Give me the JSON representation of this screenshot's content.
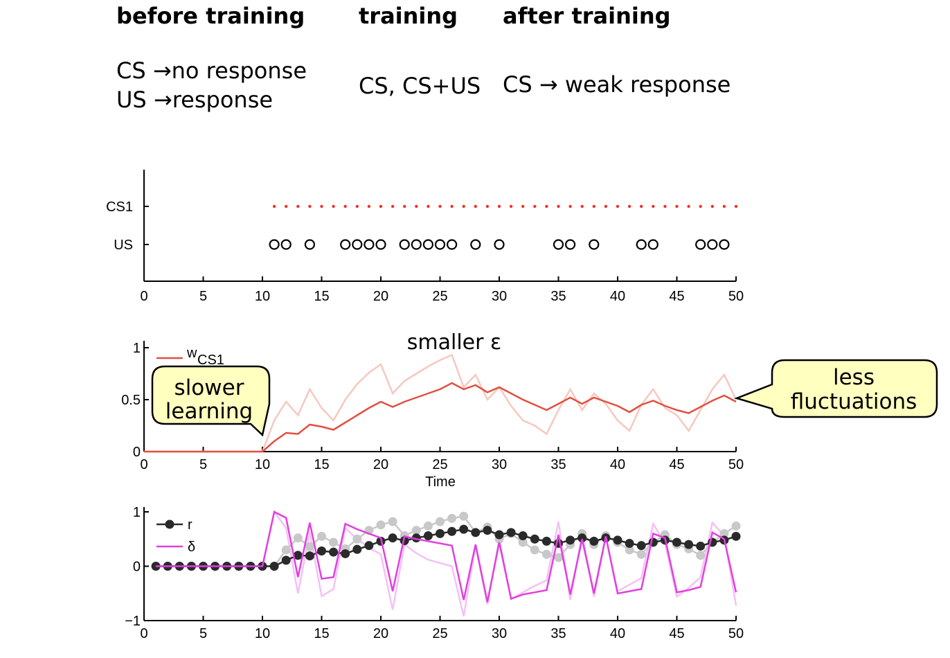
{
  "header": {
    "before": {
      "title": "before training",
      "line1": "CS →no response",
      "line2": "US →response"
    },
    "during": {
      "title": "training",
      "line1": "CS, CS+US"
    },
    "after": {
      "title": "after training",
      "line1": "CS → weak response"
    }
  },
  "callouts": {
    "left": [
      "slower",
      "learning"
    ],
    "right": [
      "less",
      "fluctuations"
    ]
  },
  "colors": {
    "cs_dots": "#ee3322",
    "w_dark": "#e05040",
    "w_light": "#f7c8c0",
    "r_dark": "#2a2a2a",
    "r_light": "#c8c8c8",
    "delta_dark": "#e040e0",
    "delta_light": "#f5c0f5",
    "callout_fill": "#ffffc0"
  },
  "chart_data": [
    {
      "type": "scatter",
      "x_ticks": [
        0,
        5,
        10,
        15,
        20,
        25,
        30,
        35,
        40,
        45,
        50
      ],
      "xlim": [
        0,
        50
      ],
      "y_tick_labels": [
        "CS1",
        "US"
      ],
      "series": [
        {
          "name": "CS1",
          "marker": "dot",
          "x": [
            11,
            12,
            13,
            14,
            15,
            16,
            17,
            18,
            19,
            20,
            21,
            22,
            23,
            24,
            25,
            26,
            27,
            28,
            29,
            30,
            31,
            32,
            33,
            34,
            35,
            36,
            37,
            38,
            39,
            40,
            41,
            42,
            43,
            44,
            45,
            46,
            47,
            48,
            49,
            50
          ]
        },
        {
          "name": "US",
          "marker": "circle",
          "x": [
            11,
            12,
            14,
            17,
            18,
            19,
            20,
            22,
            23,
            24,
            25,
            26,
            28,
            30,
            35,
            36,
            38,
            42,
            43,
            47,
            48,
            49
          ]
        }
      ]
    },
    {
      "type": "line",
      "title": "smaller ε",
      "xlabel": "Time",
      "xlim": [
        0,
        50
      ],
      "ylim": [
        0,
        1
      ],
      "x_ticks": [
        0,
        5,
        10,
        15,
        20,
        25,
        30,
        35,
        40,
        45,
        50
      ],
      "y_ticks": [
        0,
        0.5,
        1
      ],
      "y_tick_labels": [
        "0",
        "0.5",
        "1"
      ],
      "x": [
        0,
        1,
        2,
        3,
        4,
        5,
        6,
        7,
        8,
        9,
        10,
        11,
        12,
        13,
        14,
        15,
        16,
        17,
        18,
        19,
        20,
        21,
        22,
        23,
        24,
        25,
        26,
        27,
        28,
        29,
        30,
        31,
        32,
        33,
        34,
        35,
        36,
        37,
        38,
        39,
        40,
        41,
        42,
        43,
        44,
        45,
        46,
        47,
        48,
        49,
        50
      ],
      "series": [
        {
          "name": "w",
          "name_sub": "CS1",
          "legend": true,
          "values": [
            0,
            0,
            0,
            0,
            0,
            0,
            0,
            0,
            0,
            0,
            0,
            0.1,
            0.18,
            0.17,
            0.26,
            0.24,
            0.21,
            0.28,
            0.35,
            0.42,
            0.48,
            0.43,
            0.48,
            0.52,
            0.56,
            0.6,
            0.66,
            0.6,
            0.64,
            0.57,
            0.62,
            0.56,
            0.5,
            0.45,
            0.4,
            0.46,
            0.52,
            0.46,
            0.52,
            0.48,
            0.44,
            0.38,
            0.45,
            0.49,
            0.44,
            0.4,
            0.37,
            0.43,
            0.49,
            0.54,
            0.48
          ]
        },
        {
          "name": "",
          "legend": false,
          "values": [
            0,
            0,
            0,
            0,
            0,
            0,
            0,
            0,
            0,
            0,
            0,
            0.3,
            0.48,
            0.35,
            0.6,
            0.42,
            0.3,
            0.5,
            0.65,
            0.76,
            0.84,
            0.56,
            0.68,
            0.75,
            0.82,
            0.88,
            0.93,
            0.62,
            0.74,
            0.5,
            0.62,
            0.44,
            0.3,
            0.25,
            0.17,
            0.4,
            0.6,
            0.4,
            0.56,
            0.46,
            0.3,
            0.2,
            0.45,
            0.6,
            0.42,
            0.35,
            0.2,
            0.4,
            0.6,
            0.74,
            0.5
          ]
        }
      ]
    },
    {
      "type": "line",
      "xlim": [
        0,
        50
      ],
      "ylim": [
        -1,
        1
      ],
      "x_ticks": [
        0,
        5,
        10,
        15,
        20,
        25,
        30,
        35,
        40,
        45,
        50
      ],
      "y_ticks": [
        -1,
        0,
        1
      ],
      "y_tick_labels": [
        "−1",
        "0",
        "1"
      ],
      "x": [
        1,
        2,
        3,
        4,
        5,
        6,
        7,
        8,
        9,
        10,
        11,
        12,
        13,
        14,
        15,
        16,
        17,
        18,
        19,
        20,
        21,
        22,
        23,
        24,
        25,
        26,
        27,
        28,
        29,
        30,
        31,
        32,
        33,
        34,
        35,
        36,
        37,
        38,
        39,
        40,
        41,
        42,
        43,
        44,
        45,
        46,
        47,
        48,
        49,
        50
      ],
      "series": [
        {
          "name": "r",
          "legend": true,
          "marker": "dot",
          "values": [
            0,
            0,
            0,
            0,
            0,
            0,
            0,
            0,
            0,
            0,
            0,
            0.11,
            0.2,
            0.19,
            0.28,
            0.26,
            0.23,
            0.31,
            0.38,
            0.46,
            0.52,
            0.47,
            0.52,
            0.56,
            0.6,
            0.64,
            0.68,
            0.62,
            0.66,
            0.58,
            0.62,
            0.56,
            0.5,
            0.46,
            0.42,
            0.48,
            0.52,
            0.46,
            0.52,
            0.48,
            0.42,
            0.38,
            0.44,
            0.48,
            0.44,
            0.4,
            0.37,
            0.44,
            0.48,
            0.55
          ]
        },
        {
          "name": "δ",
          "legend": true,
          "values": [
            0,
            0,
            0,
            0,
            0,
            0,
            0,
            0,
            0,
            0,
            1.0,
            0.89,
            -0.2,
            0.8,
            -0.23,
            -0.2,
            0.78,
            0.68,
            0.6,
            0.52,
            -0.46,
            0.55,
            0.5,
            0.46,
            0.42,
            0.38,
            -0.62,
            0.4,
            -0.66,
            0.44,
            -0.6,
            -0.52,
            -0.48,
            -0.44,
            0.58,
            -0.52,
            0.5,
            -0.5,
            0.55,
            -0.5,
            -0.46,
            -0.42,
            0.6,
            0.52,
            -0.48,
            -0.44,
            -0.38,
            0.62,
            0.5,
            -0.48
          ]
        },
        {
          "name": "",
          "legend": false,
          "marker": "dot",
          "values": [
            0,
            0,
            0,
            0,
            0,
            0,
            0,
            0,
            0,
            0,
            0,
            0.3,
            0.52,
            0.36,
            0.55,
            0.44,
            0.32,
            0.5,
            0.66,
            0.76,
            0.82,
            0.56,
            0.66,
            0.74,
            0.82,
            0.88,
            0.92,
            0.62,
            0.72,
            0.5,
            0.6,
            0.44,
            0.3,
            0.22,
            0.16,
            0.4,
            0.6,
            0.4,
            0.56,
            0.44,
            0.3,
            0.22,
            0.44,
            0.58,
            0.4,
            0.32,
            0.2,
            0.44,
            0.6,
            0.74
          ]
        },
        {
          "name": "",
          "legend": false,
          "values": [
            0,
            0,
            0,
            0,
            0,
            0,
            0,
            0,
            0,
            0,
            1.0,
            0.7,
            -0.5,
            0.62,
            -0.55,
            -0.42,
            0.7,
            0.5,
            0.34,
            0.22,
            -0.8,
            0.4,
            0.24,
            0.12,
            0.06,
            0,
            -0.92,
            0.38,
            -0.7,
            0.5,
            -0.6,
            -0.48,
            -0.36,
            -0.26,
            0.82,
            -0.62,
            0.6,
            -0.56,
            0.54,
            -0.46,
            -0.34,
            -0.22,
            0.78,
            0.42,
            -0.56,
            -0.4,
            -0.2,
            0.8,
            0.56,
            -0.72
          ]
        }
      ]
    }
  ]
}
